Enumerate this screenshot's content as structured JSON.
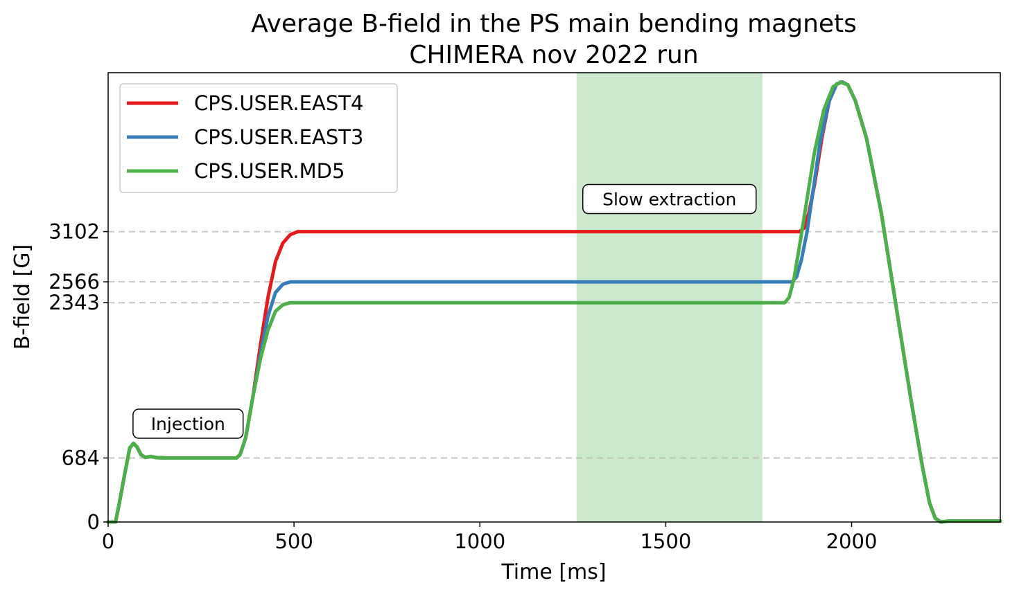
{
  "chart_data": {
    "type": "line",
    "title": "Average B-field in the PS main bending magnets",
    "subtitle": "CHIMERA nov 2022 run",
    "xlabel": "Time [ms]",
    "ylabel": "B-field [G]",
    "xlim": [
      0,
      2400
    ],
    "ylim": [
      0,
      4800
    ],
    "x_ticks": [
      0,
      500,
      1000,
      1500,
      2000
    ],
    "y_ticks": [
      0,
      684,
      2343,
      2566,
      3102
    ],
    "grid": "horizontal dashed at y ticks",
    "legend_position": "top-left",
    "shaded_region": {
      "x_start": 1260,
      "x_end": 1760,
      "color": "#4daf4a"
    },
    "annotations": [
      {
        "text": "Injection",
        "x": 215,
        "y": 1050
      },
      {
        "text": "Slow extraction",
        "x": 1510,
        "y": 3450
      }
    ],
    "series": [
      {
        "name": "CPS.USER.EAST4",
        "color": "#e41a1c",
        "points": [
          [
            0,
            0
          ],
          [
            15,
            0
          ],
          [
            20,
            0
          ],
          [
            30,
            200
          ],
          [
            45,
            520
          ],
          [
            58,
            790
          ],
          [
            68,
            840
          ],
          [
            78,
            800
          ],
          [
            88,
            720
          ],
          [
            100,
            690
          ],
          [
            115,
            700
          ],
          [
            130,
            688
          ],
          [
            160,
            684
          ],
          [
            345,
            684
          ],
          [
            355,
            720
          ],
          [
            370,
            900
          ],
          [
            390,
            1350
          ],
          [
            410,
            1900
          ],
          [
            430,
            2400
          ],
          [
            450,
            2780
          ],
          [
            470,
            2980
          ],
          [
            490,
            3070
          ],
          [
            510,
            3102
          ],
          [
            1860,
            3102
          ],
          [
            1872,
            3140
          ],
          [
            1885,
            3300
          ],
          [
            1900,
            3600
          ],
          [
            1920,
            4100
          ],
          [
            1940,
            4500
          ],
          [
            1960,
            4680
          ],
          [
            1975,
            4700
          ],
          [
            1990,
            4670
          ],
          [
            2010,
            4500
          ],
          [
            2040,
            4100
          ],
          [
            2080,
            3300
          ],
          [
            2120,
            2300
          ],
          [
            2160,
            1300
          ],
          [
            2190,
            600
          ],
          [
            2210,
            200
          ],
          [
            2225,
            40
          ],
          [
            2240,
            0
          ],
          [
            2260,
            10
          ],
          [
            2400,
            10
          ]
        ]
      },
      {
        "name": "CPS.USER.EAST3",
        "color": "#377eb8",
        "points": [
          [
            0,
            0
          ],
          [
            15,
            0
          ],
          [
            20,
            0
          ],
          [
            30,
            200
          ],
          [
            45,
            520
          ],
          [
            58,
            790
          ],
          [
            68,
            840
          ],
          [
            78,
            800
          ],
          [
            88,
            720
          ],
          [
            100,
            690
          ],
          [
            115,
            700
          ],
          [
            130,
            688
          ],
          [
            160,
            684
          ],
          [
            345,
            684
          ],
          [
            355,
            720
          ],
          [
            370,
            900
          ],
          [
            390,
            1350
          ],
          [
            410,
            1800
          ],
          [
            430,
            2200
          ],
          [
            450,
            2450
          ],
          [
            470,
            2540
          ],
          [
            490,
            2566
          ],
          [
            1840,
            2566
          ],
          [
            1852,
            2620
          ],
          [
            1865,
            2800
          ],
          [
            1880,
            3100
          ],
          [
            1895,
            3500
          ],
          [
            1915,
            4050
          ],
          [
            1940,
            4500
          ],
          [
            1960,
            4680
          ],
          [
            1975,
            4700
          ],
          [
            1990,
            4670
          ],
          [
            2010,
            4500
          ],
          [
            2040,
            4100
          ],
          [
            2080,
            3300
          ],
          [
            2120,
            2300
          ],
          [
            2160,
            1300
          ],
          [
            2190,
            600
          ],
          [
            2210,
            200
          ],
          [
            2225,
            40
          ],
          [
            2240,
            0
          ],
          [
            2260,
            10
          ],
          [
            2400,
            10
          ]
        ]
      },
      {
        "name": "CPS.USER.MD5",
        "color": "#4daf4a",
        "points": [
          [
            0,
            0
          ],
          [
            15,
            0
          ],
          [
            20,
            0
          ],
          [
            30,
            200
          ],
          [
            45,
            520
          ],
          [
            58,
            790
          ],
          [
            68,
            840
          ],
          [
            78,
            800
          ],
          [
            88,
            720
          ],
          [
            100,
            690
          ],
          [
            115,
            700
          ],
          [
            130,
            688
          ],
          [
            160,
            684
          ],
          [
            345,
            684
          ],
          [
            355,
            720
          ],
          [
            370,
            900
          ],
          [
            390,
            1350
          ],
          [
            410,
            1750
          ],
          [
            430,
            2050
          ],
          [
            450,
            2250
          ],
          [
            470,
            2320
          ],
          [
            490,
            2343
          ],
          [
            1820,
            2343
          ],
          [
            1832,
            2400
          ],
          [
            1845,
            2600
          ],
          [
            1860,
            2950
          ],
          [
            1880,
            3450
          ],
          [
            1900,
            3950
          ],
          [
            1925,
            4400
          ],
          [
            1950,
            4650
          ],
          [
            1970,
            4700
          ],
          [
            1990,
            4670
          ],
          [
            2010,
            4500
          ],
          [
            2040,
            4100
          ],
          [
            2080,
            3300
          ],
          [
            2120,
            2300
          ],
          [
            2160,
            1300
          ],
          [
            2190,
            600
          ],
          [
            2210,
            200
          ],
          [
            2225,
            40
          ],
          [
            2240,
            0
          ],
          [
            2260,
            10
          ],
          [
            2400,
            10
          ]
        ]
      }
    ]
  }
}
